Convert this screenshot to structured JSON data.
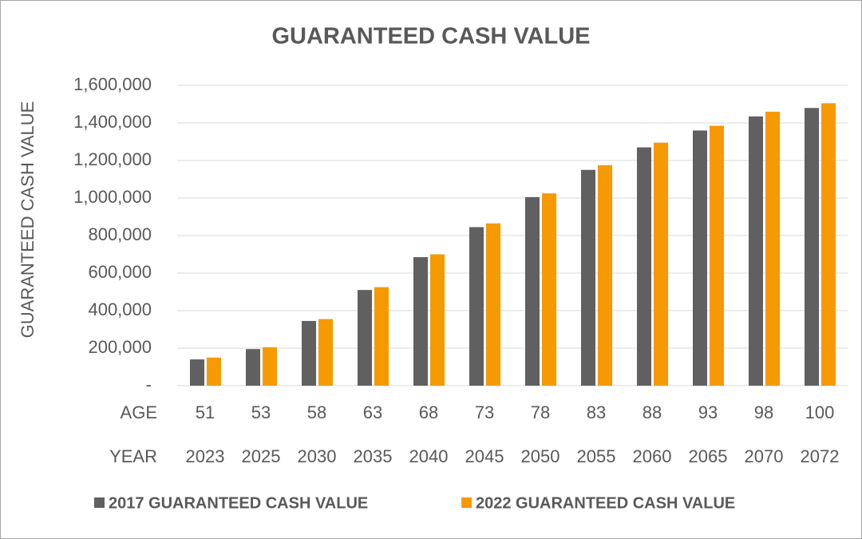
{
  "chart_data": {
    "type": "bar",
    "title": "GUARANTEED CASH VALUE",
    "y_label": "GUARANTEED CASH VALUE",
    "category_row_labels": [
      "AGE",
      "YEAR"
    ],
    "categories": [
      "51",
      "53",
      "58",
      "63",
      "68",
      "73",
      "78",
      "83",
      "88",
      "93",
      "98",
      "100"
    ],
    "years": [
      "2023",
      "2025",
      "2030",
      "2035",
      "2040",
      "2045",
      "2050",
      "2055",
      "2060",
      "2065",
      "2070",
      "2072"
    ],
    "series": [
      {
        "name": "2017 GUARANTEED CASH VALUE",
        "color": "#606060",
        "values": [
          140000,
          195000,
          345000,
          510000,
          685000,
          845000,
          1005000,
          1150000,
          1270000,
          1360000,
          1435000,
          1480000
        ]
      },
      {
        "name": "2022 GUARANTEED CASH VALUE",
        "color": "#f59a00",
        "values": [
          150000,
          205000,
          355000,
          525000,
          700000,
          865000,
          1025000,
          1175000,
          1295000,
          1385000,
          1460000,
          1505000
        ]
      }
    ],
    "ylim": [
      0,
      1600000
    ],
    "yticks": [
      {
        "value": 0,
        "label": "-"
      },
      {
        "value": 200000,
        "label": "200,000"
      },
      {
        "value": 400000,
        "label": "400,000"
      },
      {
        "value": 600000,
        "label": "600,000"
      },
      {
        "value": 800000,
        "label": "800,000"
      },
      {
        "value": 1000000,
        "label": "1,000,000"
      },
      {
        "value": 1200000,
        "label": "1,200,000"
      },
      {
        "value": 1400000,
        "label": "1,400,000"
      },
      {
        "value": 1600000,
        "label": "1,600,000"
      }
    ],
    "grid": true,
    "legend": "bottom"
  }
}
